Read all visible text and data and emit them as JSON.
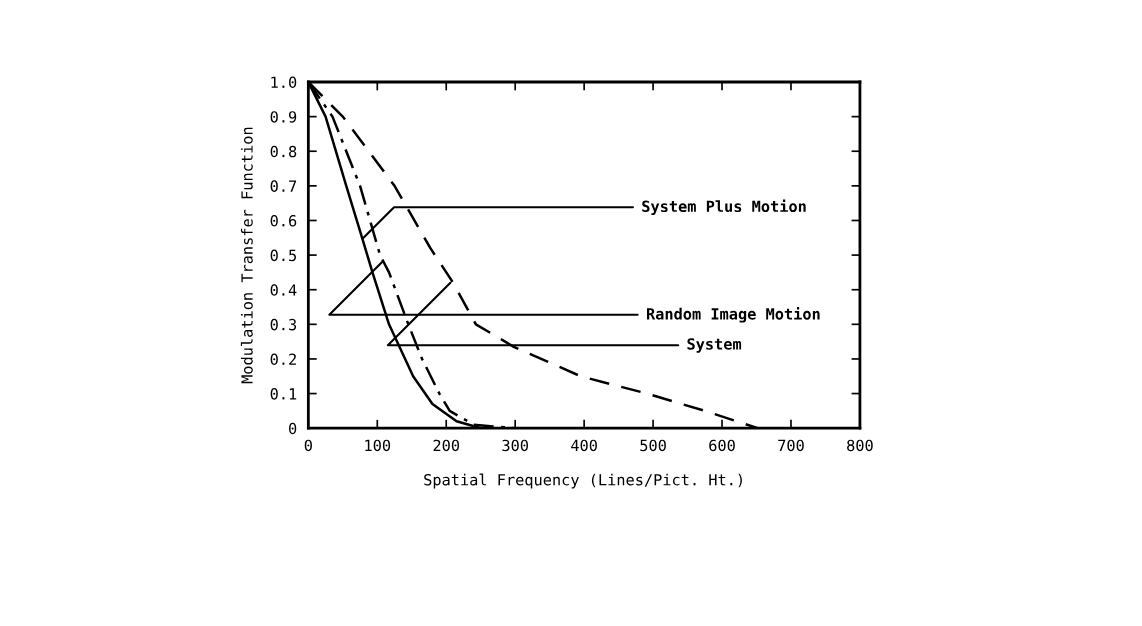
{
  "chart_data": {
    "type": "line",
    "xlabel": "Spatial Frequency (Lines/Pict. Ht.)",
    "ylabel": "Modulation Transfer Function",
    "xlim": [
      0,
      800
    ],
    "xticks": [
      0,
      100,
      200,
      300,
      400,
      500,
      600,
      700,
      800
    ],
    "ylim": [
      0,
      1.0
    ],
    "yticks": [
      {
        "value": 0,
        "label": "0"
      },
      0.1,
      0.2,
      0.3,
      0.4,
      0.5,
      0.6,
      0.7,
      0.8,
      0.9,
      {
        "value": 1.0,
        "label": "1.0"
      }
    ],
    "grid": false,
    "legend": false,
    "series": [
      {
        "color": "#000000",
        "line_style": "solid",
        "x": [
          0,
          25,
          55,
          78,
          93,
          117,
          152,
          180,
          215,
          250
        ],
        "values": [
          1.0,
          0.9,
          0.7,
          0.55,
          0.45,
          0.3,
          0.15,
          0.07,
          0.02,
          0
        ]
      },
      {
        "color": "#000000",
        "line_style": "dashdot",
        "x": [
          0,
          35,
          75,
          104,
          117,
          145,
          165,
          190,
          205,
          240,
          300
        ],
        "values": [
          1.0,
          0.9,
          0.7,
          0.5,
          0.45,
          0.3,
          0.2,
          0.1,
          0.05,
          0.01,
          0
        ]
      },
      {
        "color": "#000000",
        "line_style": "dashed",
        "x": [
          0,
          50,
          125,
          177,
          210,
          243,
          298,
          395,
          491,
          575,
          652
        ],
        "values": [
          1.0,
          0.9,
          0.7,
          0.52,
          0.42,
          0.3,
          0.235,
          0.15,
          0.1,
          0.05,
          0
        ]
      }
    ],
    "annotations": [
      {
        "text": "System Plus Motion",
        "x": 80,
        "y": 0.55
      },
      {
        "text": "Random Image Motion",
        "x": 107,
        "y": 0.48
      },
      {
        "text": "System",
        "x": 206,
        "y": 0.42
      }
    ]
  }
}
